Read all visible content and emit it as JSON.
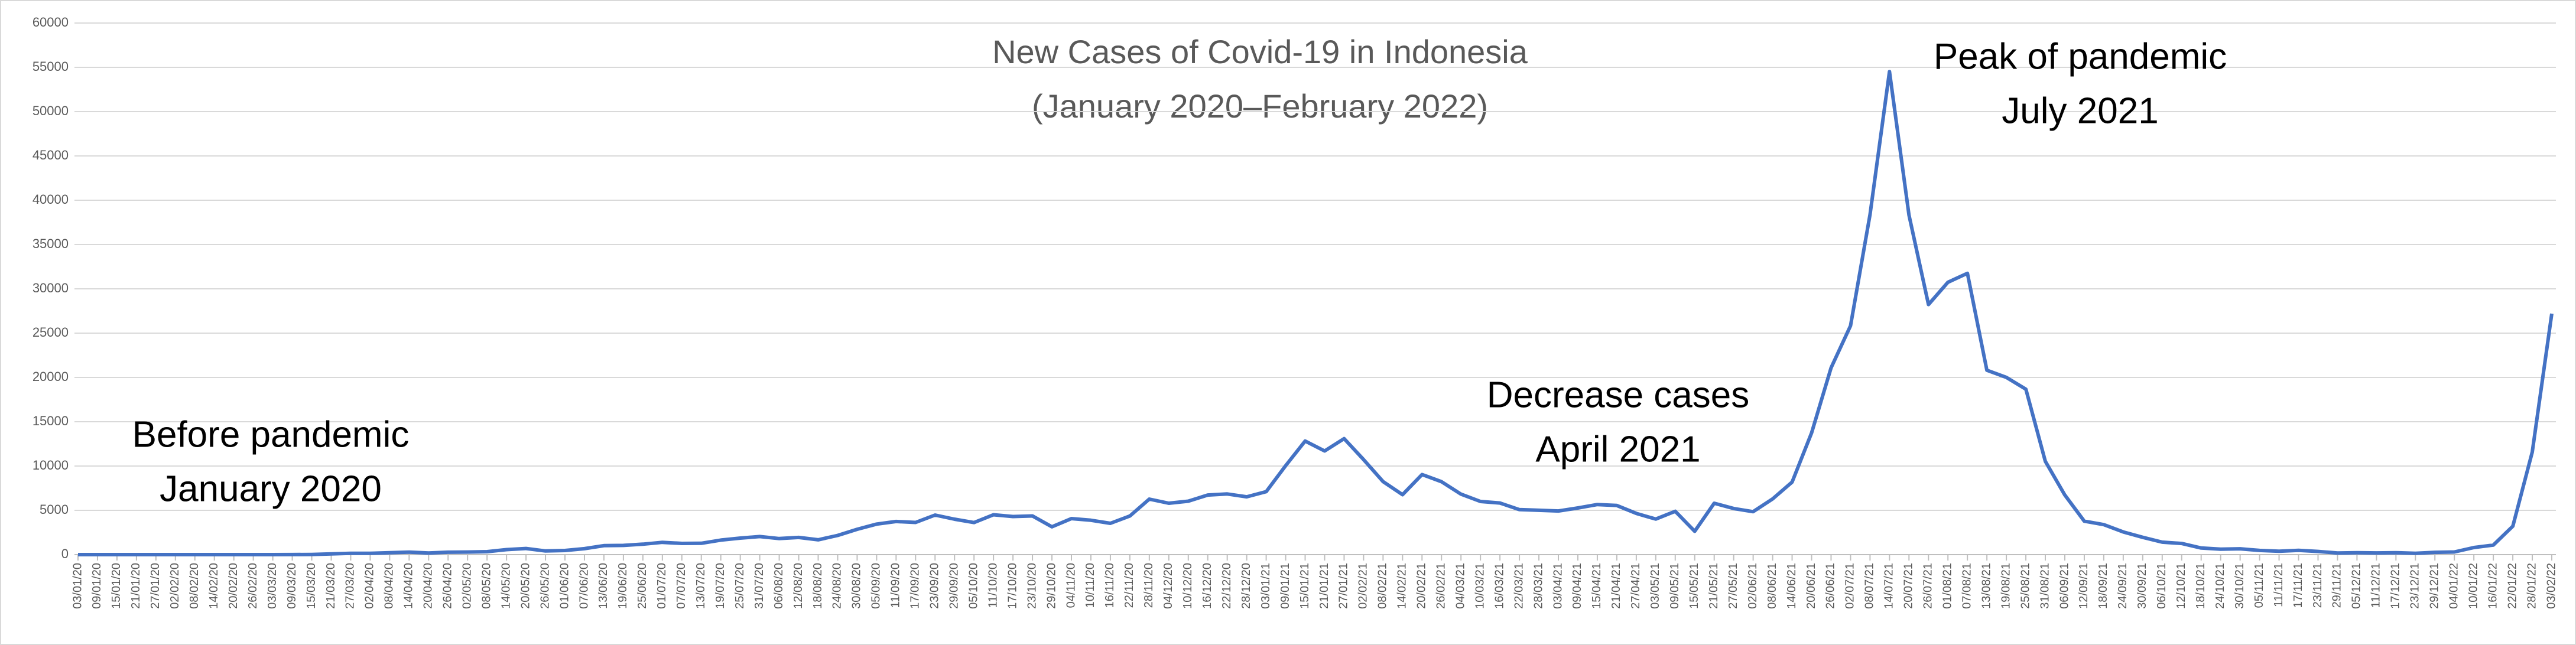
{
  "chart_data": {
    "type": "line",
    "title": "New Cases of Covid-19 in Indonesia",
    "subtitle": "(January 2020–February 2022)",
    "annotations": [
      [
        "Before pandemic",
        "January 2020"
      ],
      [
        "Decrease cases",
        "April 2021"
      ],
      [
        "Peak of pandemic",
        "July 2021"
      ]
    ],
    "categories": [
      "03/01/20",
      "09/01/20",
      "15/01/20",
      "21/01/20",
      "27/01/20",
      "02/02/20",
      "08/02/20",
      "14/02/20",
      "20/02/20",
      "26/02/20",
      "03/03/20",
      "09/03/20",
      "15/03/20",
      "21/03/20",
      "27/03/20",
      "02/04/20",
      "08/04/20",
      "14/04/20",
      "20/04/20",
      "26/04/20",
      "02/05/20",
      "08/05/20",
      "14/05/20",
      "20/05/20",
      "26/05/20",
      "01/06/20",
      "07/06/20",
      "13/06/20",
      "19/06/20",
      "25/06/20",
      "01/07/20",
      "07/07/20",
      "13/07/20",
      "19/07/20",
      "25/07/20",
      "31/07/20",
      "06/08/20",
      "12/08/20",
      "18/08/20",
      "24/08/20",
      "30/08/20",
      "05/09/20",
      "11/09/20",
      "17/09/20",
      "23/09/20",
      "29/09/20",
      "05/10/20",
      "11/10/20",
      "17/10/20",
      "23/10/20",
      "29/10/20",
      "04/11/20",
      "10/11/20",
      "16/11/20",
      "22/11/20",
      "28/11/20",
      "04/12/20",
      "10/12/20",
      "16/12/20",
      "22/12/20",
      "28/12/20",
      "03/01/21",
      "09/01/21",
      "15/01/21",
      "21/01/21",
      "27/01/21",
      "02/02/21",
      "08/02/21",
      "14/02/21",
      "20/02/21",
      "26/02/21",
      "04/03/21",
      "10/03/21",
      "16/03/21",
      "22/03/21",
      "28/03/21",
      "03/04/21",
      "09/04/21",
      "15/04/21",
      "21/04/21",
      "27/04/21",
      "03/05/21",
      "09/05/21",
      "15/05/21",
      "21/05/21",
      "27/05/21",
      "02/06/21",
      "08/06/21",
      "14/06/21",
      "20/06/21",
      "26/06/21",
      "02/07/21",
      "08/07/21",
      "14/07/21",
      "20/07/21",
      "26/07/21",
      "01/08/21",
      "07/08/21",
      "13/08/21",
      "19/08/21",
      "25/08/21",
      "31/08/21",
      "06/09/21",
      "12/09/21",
      "18/09/21",
      "24/09/21",
      "30/09/21",
      "06/10/21",
      "12/10/21",
      "18/10/21",
      "24/10/21",
      "30/10/21",
      "05/11/21",
      "11/11/21",
      "17/11/21",
      "23/11/21",
      "29/11/21",
      "05/12/21",
      "11/12/21",
      "17/12/21",
      "23/12/21",
      "29/12/21",
      "04/01/22",
      "10/01/22",
      "16/01/22",
      "22/01/22",
      "28/01/22",
      "03/02/22"
    ],
    "series": [
      {
        "color": "#4472c4",
        "values": [
          0,
          0,
          0,
          0,
          0,
          0,
          0,
          0,
          0,
          0,
          2,
          6,
          21,
          81,
          153,
          149,
          218,
          282,
          185,
          275,
          292,
          336,
          568,
          693,
          415,
          467,
          672,
          1014,
          1041,
          1178,
          1385,
          1268,
          1282,
          1639,
          1868,
          2040,
          1815,
          1942,
          1673,
          2170,
          2858,
          3444,
          3737,
          3635,
          4465,
          4002,
          3622,
          4497,
          4301,
          4369,
          3143,
          4065,
          3880,
          3535,
          4360,
          6267,
          5803,
          6033,
          6725,
          6848,
          6528,
          7105,
          10046,
          12818,
          11703,
          13094,
          10728,
          8242,
          6765,
          9039,
          8232,
          6825,
          5998,
          5825,
          5077,
          5008,
          4927,
          5265,
          5656,
          5549,
          4656,
          4016,
          4891,
          2633,
          5797,
          5205,
          4850,
          6294,
          8189,
          13737,
          21095,
          25830,
          38391,
          54517,
          38325,
          28228,
          30738,
          31753,
          20813,
          20004,
          18671,
          10534,
          6727,
          3779,
          3385,
          2557,
          1954,
          1404,
          1261,
          747,
          623,
          657,
          472,
          378,
          484,
          357,
          185,
          213,
          192,
          222,
          152,
          262,
          299,
          802,
          1079,
          3205,
          11588,
          27197
        ]
      }
    ],
    "ylim": [
      0,
      60000
    ],
    "yticks": [
      0,
      5000,
      10000,
      15000,
      20000,
      25000,
      30000,
      35000,
      40000,
      45000,
      50000,
      55000,
      60000
    ],
    "grid": true
  }
}
